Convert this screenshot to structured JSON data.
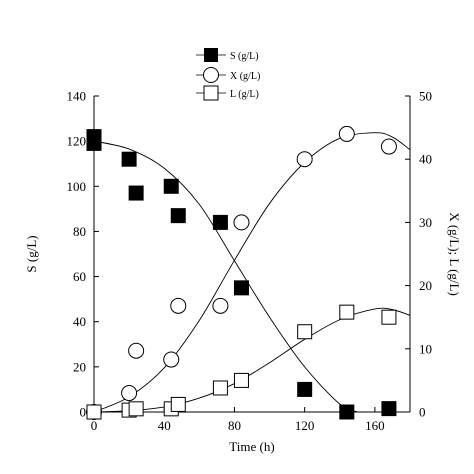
{
  "chart_data": {
    "type": "scatter",
    "x_axis": {
      "label": "Time (h)",
      "range": [
        0,
        180
      ],
      "ticks": [
        0,
        40,
        80,
        120,
        160
      ]
    },
    "y_left": {
      "label": "S (g/L)",
      "range": [
        0,
        140
      ],
      "ticks": [
        0,
        20,
        40,
        60,
        80,
        100,
        120,
        140
      ]
    },
    "y_right": {
      "label": "X (g/L); L (g/L)",
      "range": [
        0,
        50
      ],
      "ticks": [
        0,
        10,
        20,
        30,
        40,
        50
      ]
    },
    "legend": {
      "placement": "top-center",
      "entries": [
        {
          "series": "S",
          "label": "S (g/L)"
        },
        {
          "series": "X",
          "label": "X (g/L)"
        },
        {
          "series": "L",
          "label": "L (g/L)"
        }
      ]
    },
    "series": [
      {
        "name": "S (g/L)",
        "key": "S",
        "marker": "filled-square",
        "axis": "left",
        "points": [
          [
            0,
            122
          ],
          [
            0,
            119
          ],
          [
            20,
            112
          ],
          [
            24,
            97
          ],
          [
            44,
            100
          ],
          [
            48,
            87
          ],
          [
            72,
            84
          ],
          [
            84,
            55
          ],
          [
            120,
            10
          ],
          [
            144,
            0
          ],
          [
            168,
            1.5
          ]
        ],
        "fit": [
          [
            0,
            120
          ],
          [
            20,
            116.5
          ],
          [
            40,
            108
          ],
          [
            60,
            92
          ],
          [
            80,
            67
          ],
          [
            100,
            42
          ],
          [
            120,
            20
          ],
          [
            140,
            3.5
          ],
          [
            150,
            0
          ]
        ]
      },
      {
        "name": "X (g/L)",
        "key": "X",
        "marker": "open-circle",
        "axis": "right",
        "points": [
          [
            0,
            0
          ],
          [
            20,
            3
          ],
          [
            24,
            9.7
          ],
          [
            44,
            8.3
          ],
          [
            48,
            16.8
          ],
          [
            72,
            16.8
          ],
          [
            84,
            30
          ],
          [
            120,
            40
          ],
          [
            144,
            44
          ],
          [
            168,
            42
          ]
        ],
        "fit": [
          [
            0,
            0
          ],
          [
            20,
            2.4
          ],
          [
            40,
            7
          ],
          [
            60,
            14.5
          ],
          [
            80,
            24
          ],
          [
            100,
            33
          ],
          [
            120,
            39.5
          ],
          [
            140,
            43.3
          ],
          [
            160,
            44.2
          ],
          [
            170,
            43.5
          ],
          [
            180,
            41.5
          ]
        ]
      },
      {
        "name": "L (g/L)",
        "key": "L",
        "marker": "open-square",
        "axis": "right",
        "points": [
          [
            0,
            0
          ],
          [
            20,
            0.3
          ],
          [
            24,
            0.5
          ],
          [
            44,
            0.5
          ],
          [
            48,
            1.2
          ],
          [
            72,
            3.8
          ],
          [
            84,
            5
          ],
          [
            120,
            12.7
          ],
          [
            144,
            15.8
          ],
          [
            168,
            15
          ]
        ],
        "fit": [
          [
            0,
            0
          ],
          [
            20,
            0.2
          ],
          [
            40,
            0.8
          ],
          [
            60,
            2.2
          ],
          [
            80,
            4.5
          ],
          [
            100,
            7.8
          ],
          [
            120,
            11.5
          ],
          [
            140,
            14.6
          ],
          [
            160,
            16.3
          ],
          [
            170,
            16.2
          ],
          [
            180,
            15.3
          ]
        ]
      }
    ]
  }
}
